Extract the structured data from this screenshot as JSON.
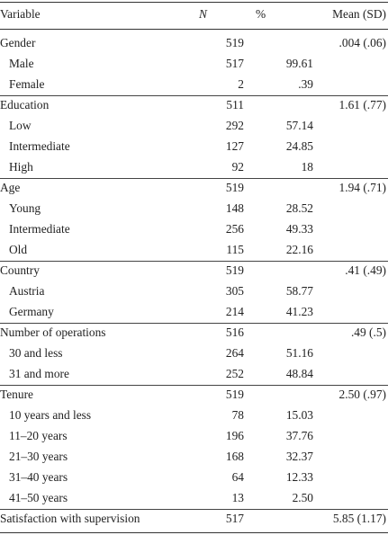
{
  "table": {
    "headers": {
      "variable": "Variable",
      "n": "N",
      "pct": "%",
      "mean": "Mean (SD)"
    },
    "groups": [
      {
        "label": "Gender",
        "n": "519",
        "mean": ".004 (.06)",
        "rows": [
          {
            "label": "Male",
            "n": "517",
            "pct": "99.61"
          },
          {
            "label": "Female",
            "n": "2",
            "pct": ".39"
          }
        ]
      },
      {
        "label": "Education",
        "n": "511",
        "mean": "1.61 (.77)",
        "rows": [
          {
            "label": "Low",
            "n": "292",
            "pct": "57.14"
          },
          {
            "label": "Intermediate",
            "n": "127",
            "pct": "24.85"
          },
          {
            "label": "High",
            "n": "92",
            "pct": "18"
          }
        ]
      },
      {
        "label": "Age",
        "n": "519",
        "mean": "1.94 (.71)",
        "rows": [
          {
            "label": "Young",
            "n": "148",
            "pct": "28.52"
          },
          {
            "label": "Intermediate",
            "n": "256",
            "pct": "49.33"
          },
          {
            "label": "Old",
            "n": "115",
            "pct": "22.16"
          }
        ]
      },
      {
        "label": "Country",
        "n": "519",
        "mean": ".41 (.49)",
        "rows": [
          {
            "label": "Austria",
            "n": "305",
            "pct": "58.77"
          },
          {
            "label": "Germany",
            "n": "214",
            "pct": "41.23"
          }
        ]
      },
      {
        "label": "Number of operations",
        "n": "516",
        "mean": ".49 (.5)",
        "rows": [
          {
            "label": "30 and less",
            "n": "264",
            "pct": "51.16"
          },
          {
            "label": "31 and more",
            "n": "252",
            "pct": "48.84"
          }
        ]
      },
      {
        "label": "Tenure",
        "n": "519",
        "mean": "2.50 (.97)",
        "rows": [
          {
            "label": "10 years and less",
            "n": "78",
            "pct": "15.03"
          },
          {
            "label": "11–20 years",
            "n": "196",
            "pct": "37.76"
          },
          {
            "label": "21–30 years",
            "n": "168",
            "pct": "32.37"
          },
          {
            "label": "31–40 years",
            "n": "64",
            "pct": "12.33"
          },
          {
            "label": "41–50 years",
            "n": "13",
            "pct": "2.50"
          }
        ]
      },
      {
        "label": "Satisfaction with supervision",
        "n": "517",
        "mean": "5.85 (1.17)",
        "rows": []
      }
    ]
  }
}
